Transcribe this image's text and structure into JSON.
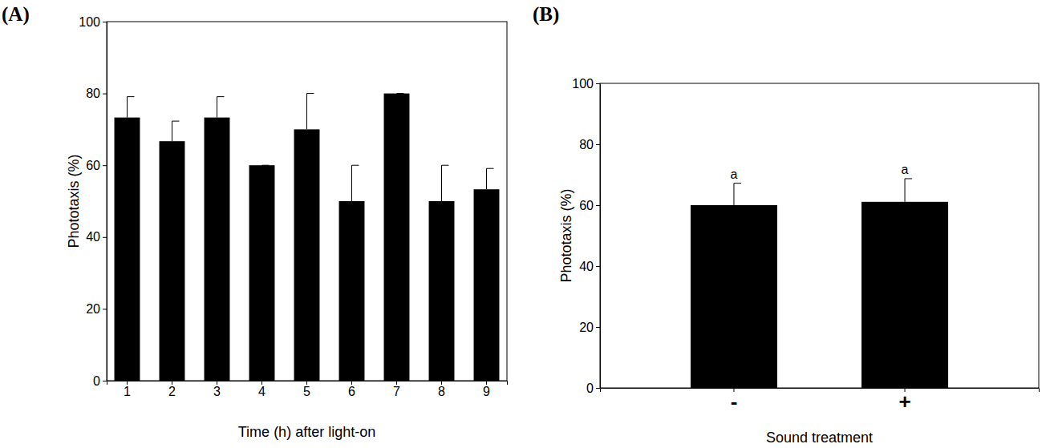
{
  "chart_data": [
    {
      "type": "bar",
      "title": "(A)",
      "categories": [
        "1",
        "2",
        "3",
        "4",
        "5",
        "6",
        "7",
        "8",
        "9"
      ],
      "values": [
        73.3,
        66.7,
        73.3,
        60,
        70,
        50,
        80,
        50,
        53.3
      ],
      "errors": [
        5.8,
        5.6,
        5.8,
        0,
        10,
        10,
        0,
        10,
        5.8
      ],
      "color": "#000000",
      "x_label": "Time (h) after light-on",
      "y_label": "Phototaxis (%)",
      "ylim": [
        0,
        100
      ],
      "yticks": [
        0,
        20,
        40,
        60,
        80,
        100
      ]
    },
    {
      "type": "bar",
      "title": "(B)",
      "categories": [
        "-",
        "+"
      ],
      "values": [
        60,
        61.1
      ],
      "errors": [
        7.2,
        7.6
      ],
      "significance": [
        "a",
        "a"
      ],
      "color": "#000000",
      "x_label": "Sound treatment",
      "y_label": "Phototaxis (%)",
      "ylim": [
        0,
        100
      ],
      "yticks": [
        0,
        20,
        40,
        60,
        80,
        100
      ]
    }
  ]
}
